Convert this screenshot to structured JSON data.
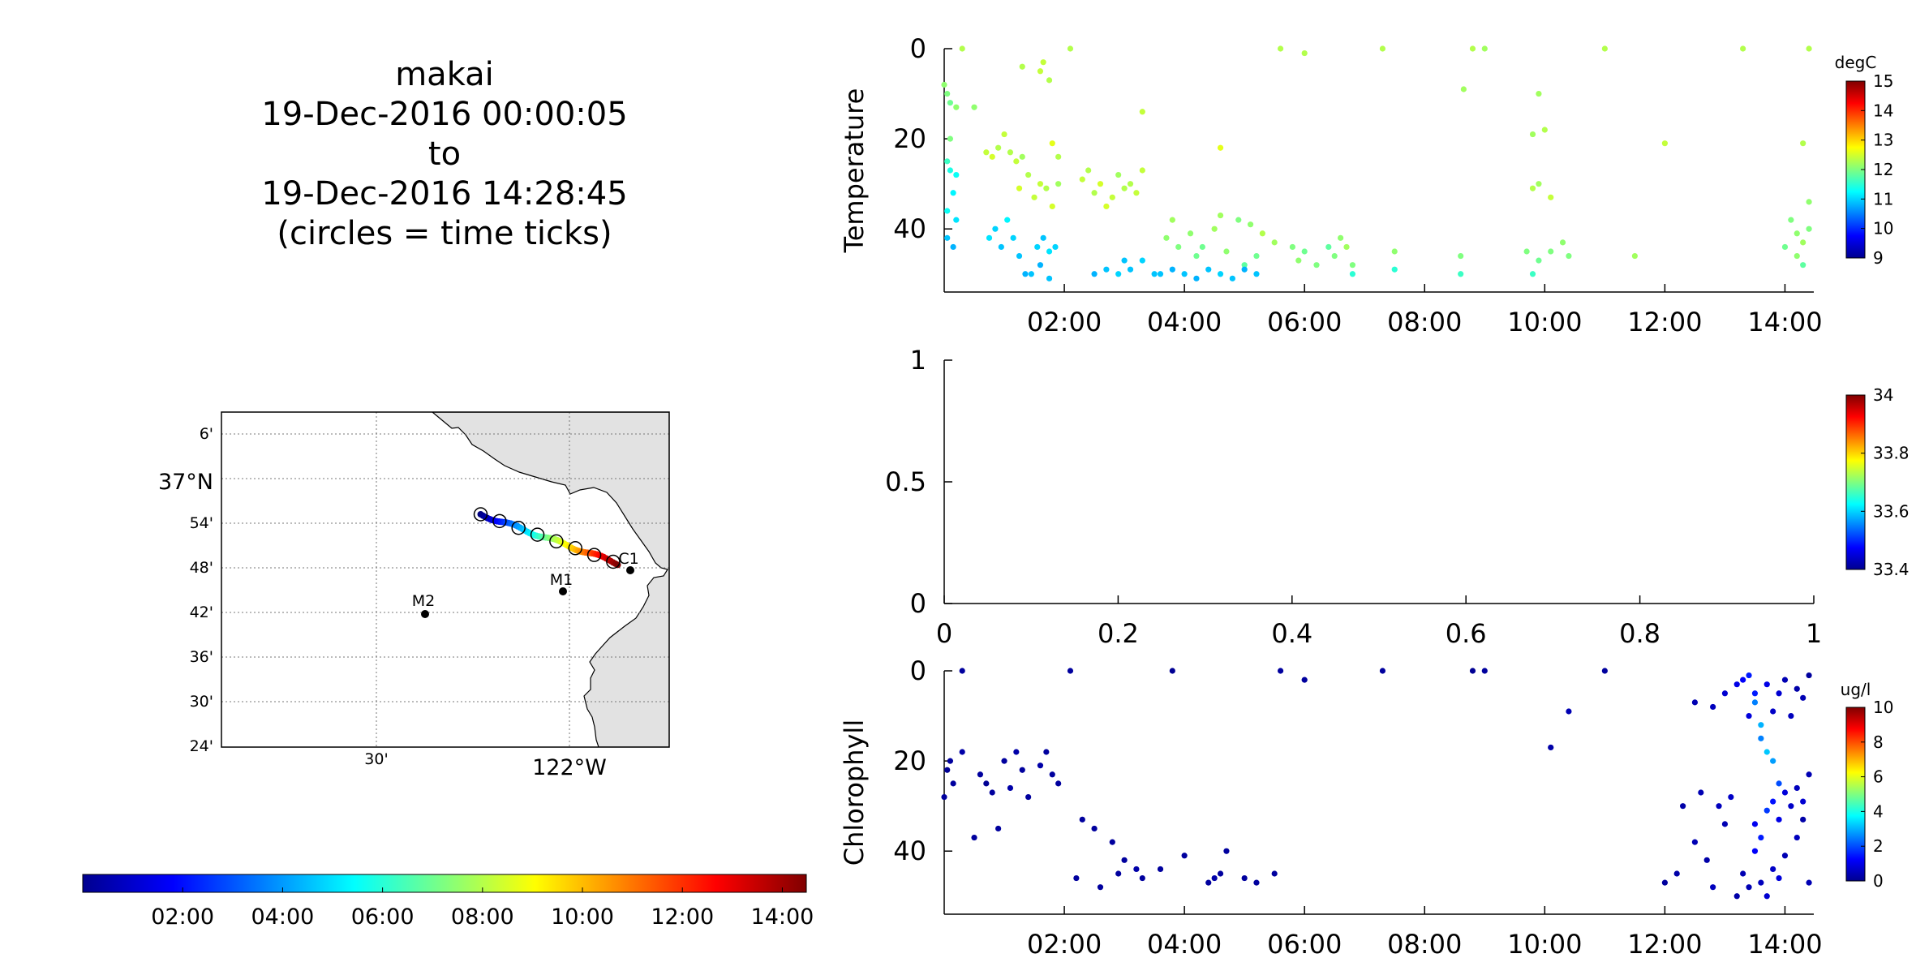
{
  "title": {
    "lines": [
      "makai",
      "19-Dec-2016 00:00:05",
      "to",
      "19-Dec-2016 14:28:45",
      "(circles = time ticks)"
    ]
  },
  "time_colorbar": {
    "ticks": [
      "02:00",
      "04:00",
      "06:00",
      "08:00",
      "10:00",
      "12:00",
      "14:00"
    ],
    "range_hours": [
      0,
      14.48
    ],
    "colormap": "jet"
  },
  "map": {
    "lat_labels": [
      "6'",
      "37°N",
      "54'",
      "48'",
      "42'",
      "36'",
      "30'",
      "24'"
    ],
    "lon_labels": [
      "30'",
      "122°W"
    ],
    "stations": [
      {
        "name": "M2",
        "lat": 36.695,
        "lon": -122.39
      },
      {
        "name": "M1",
        "lat": 36.747,
        "lon": -122.025
      },
      {
        "name": "C1",
        "lat": 36.797,
        "lon": -121.85
      }
    ],
    "land_color": "#e2e2e2",
    "track_start": {
      "lat": 36.92,
      "lon": -122.23
    },
    "track_end": {
      "lat": 36.81,
      "lon": -121.875
    }
  },
  "chart_data": [
    {
      "type": "scatter",
      "ylabel": "Temperature",
      "colorbar_label": "degC",
      "colorbar_ticks": [
        "15",
        "14",
        "13",
        "12",
        "11",
        "10",
        "9"
      ],
      "clim": [
        9,
        15
      ],
      "yticks": [
        "0",
        "20",
        "40"
      ],
      "xticks": [
        "02:00",
        "04:00",
        "06:00",
        "08:00",
        "10:00",
        "12:00",
        "14:00"
      ],
      "xlim_hours": [
        0,
        14.48
      ],
      "ylim": [
        54,
        0
      ],
      "points": [
        [
          0.0,
          8,
          12.1
        ],
        [
          0.05,
          10,
          12.0
        ],
        [
          0.1,
          12,
          11.9
        ],
        [
          0.2,
          13,
          12.1
        ],
        [
          0.1,
          20,
          12.0
        ],
        [
          0.05,
          25,
          11.6
        ],
        [
          0.1,
          27,
          11.4
        ],
        [
          0.2,
          28,
          11.3
        ],
        [
          0.15,
          32,
          11.2
        ],
        [
          0.05,
          36,
          11.3
        ],
        [
          0.2,
          38,
          11.1
        ],
        [
          0.05,
          42,
          10.9
        ],
        [
          0.15,
          44,
          10.8
        ],
        [
          0.5,
          13,
          12.1
        ],
        [
          0.3,
          0,
          12.3
        ],
        [
          1.3,
          4,
          12.3
        ],
        [
          1.6,
          5,
          12.4
        ],
        [
          1.75,
          7,
          12.3
        ],
        [
          1.65,
          3,
          12.4
        ],
        [
          2.1,
          0,
          12.3
        ],
        [
          3.3,
          14,
          12.4
        ],
        [
          0.7,
          23,
          12.4
        ],
        [
          0.8,
          24,
          12.5
        ],
        [
          0.9,
          22,
          12.3
        ],
        [
          1.0,
          19,
          12.4
        ],
        [
          1.1,
          23,
          12.3
        ],
        [
          1.3,
          24,
          12.2
        ],
        [
          1.2,
          25,
          12.4
        ],
        [
          1.4,
          28,
          12.3
        ],
        [
          1.25,
          31,
          12.5
        ],
        [
          1.8,
          21,
          12.6
        ],
        [
          1.9,
          24,
          12.3
        ],
        [
          1.6,
          30,
          12.4
        ],
        [
          1.7,
          31,
          12.3
        ],
        [
          1.9,
          30,
          12.2
        ],
        [
          1.5,
          33,
          12.4
        ],
        [
          1.8,
          35,
          12.5
        ],
        [
          0.75,
          42,
          11.1
        ],
        [
          0.85,
          40,
          11.0
        ],
        [
          0.95,
          44,
          10.9
        ],
        [
          1.05,
          38,
          11.2
        ],
        [
          1.15,
          42,
          11.0
        ],
        [
          1.25,
          46,
          10.9
        ],
        [
          1.35,
          50,
          10.8
        ],
        [
          1.45,
          50,
          10.9
        ],
        [
          1.55,
          44,
          11.0
        ],
        [
          1.65,
          42,
          10.9
        ],
        [
          1.75,
          45,
          11.1
        ],
        [
          1.85,
          44,
          11.0
        ],
        [
          1.6,
          48,
          10.8
        ],
        [
          1.75,
          51,
          10.9
        ],
        [
          2.3,
          29,
          12.4
        ],
        [
          2.5,
          32,
          12.3
        ],
        [
          2.6,
          30,
          12.5
        ],
        [
          2.8,
          33,
          12.4
        ],
        [
          3.0,
          31,
          12.3
        ],
        [
          3.2,
          32,
          12.4
        ],
        [
          2.4,
          27,
          12.3
        ],
        [
          2.7,
          35,
          12.5
        ],
        [
          2.9,
          28,
          12.2
        ],
        [
          3.1,
          30,
          12.3
        ],
        [
          3.3,
          27,
          12.4
        ],
        [
          2.5,
          50,
          10.8
        ],
        [
          2.7,
          49,
          10.9
        ],
        [
          2.9,
          50,
          11.0
        ],
        [
          3.1,
          49,
          10.9
        ],
        [
          3.3,
          47,
          11.0
        ],
        [
          3.5,
          50,
          10.9
        ],
        [
          3.0,
          47,
          10.9
        ],
        [
          3.7,
          42,
          12.1
        ],
        [
          3.9,
          44,
          12.0
        ],
        [
          4.1,
          41,
          12.1
        ],
        [
          4.3,
          44,
          11.9
        ],
        [
          4.5,
          40,
          12.2
        ],
        [
          4.7,
          45,
          12.1
        ],
        [
          4.9,
          38,
          12.0
        ],
        [
          5.1,
          39,
          12.1
        ],
        [
          5.3,
          41,
          12.3
        ],
        [
          5.5,
          43,
          12.2
        ],
        [
          3.8,
          38,
          12.2
        ],
        [
          4.2,
          46,
          11.9
        ],
        [
          4.6,
          37,
          12.2
        ],
        [
          5.0,
          48,
          11.8
        ],
        [
          4.6,
          22,
          12.6
        ],
        [
          5.2,
          46,
          11.9
        ],
        [
          3.6,
          50,
          10.9
        ],
        [
          3.8,
          49,
          10.8
        ],
        [
          4.0,
          50,
          10.9
        ],
        [
          4.2,
          51,
          10.8
        ],
        [
          4.4,
          49,
          10.9
        ],
        [
          4.6,
          50,
          11.0
        ],
        [
          4.8,
          51,
          10.9
        ],
        [
          5.0,
          49,
          10.8
        ],
        [
          5.2,
          50,
          10.9
        ],
        [
          5.6,
          0,
          12.3
        ],
        [
          6.0,
          1,
          12.3
        ],
        [
          5.8,
          44,
          12.0
        ],
        [
          5.9,
          47,
          12.1
        ],
        [
          6.0,
          45,
          11.9
        ],
        [
          6.2,
          48,
          12.0
        ],
        [
          6.4,
          44,
          11.8
        ],
        [
          6.5,
          46,
          12.0
        ],
        [
          6.6,
          42,
          12.1
        ],
        [
          6.7,
          44,
          12.2
        ],
        [
          6.8,
          48,
          12.0
        ],
        [
          6.8,
          50,
          11.5
        ],
        [
          7.3,
          0,
          12.3
        ],
        [
          7.5,
          45,
          12.1
        ],
        [
          7.5,
          49,
          11.5
        ],
        [
          8.65,
          9,
          12.2
        ],
        [
          8.8,
          0,
          12.3
        ],
        [
          9.0,
          0,
          12.2
        ],
        [
          8.6,
          46,
          12.0
        ],
        [
          8.6,
          50,
          11.6
        ],
        [
          9.8,
          19,
          12.2
        ],
        [
          9.9,
          10,
          12.2
        ],
        [
          10.0,
          18,
          12.3
        ],
        [
          9.8,
          31,
          12.3
        ],
        [
          9.9,
          30,
          12.2
        ],
        [
          10.1,
          33,
          12.4
        ],
        [
          9.7,
          45,
          12.0
        ],
        [
          9.9,
          47,
          11.9
        ],
        [
          10.1,
          45,
          12.0
        ],
        [
          10.3,
          43,
          12.1
        ],
        [
          10.4,
          46,
          12.0
        ],
        [
          9.8,
          50,
          11.6
        ],
        [
          11.0,
          0,
          12.3
        ],
        [
          11.5,
          46,
          12.2
        ],
        [
          12.0,
          21,
          12.4
        ],
        [
          13.3,
          0,
          12.3
        ],
        [
          14.3,
          21,
          12.3
        ],
        [
          14.4,
          0,
          12.3
        ],
        [
          14.1,
          38,
          12.0
        ],
        [
          14.2,
          41,
          12.1
        ],
        [
          14.3,
          43,
          12.2
        ],
        [
          14.4,
          40,
          12.0
        ],
        [
          14.0,
          44,
          11.9
        ],
        [
          14.2,
          46,
          12.1
        ],
        [
          14.4,
          34,
          12.1
        ],
        [
          14.3,
          48,
          11.8
        ]
      ]
    },
    {
      "type": "scatter",
      "colorbar_ticks": [
        "34",
        "33.8",
        "33.6",
        "33.4"
      ],
      "clim": [
        33.4,
        34
      ],
      "xticks": [
        "0",
        "0.2",
        "0.4",
        "0.6",
        "0.8",
        "1"
      ],
      "yticks": [
        "1",
        "0.5",
        "0"
      ],
      "xlim": [
        0,
        1
      ],
      "ylim": [
        0,
        1
      ],
      "points": []
    },
    {
      "type": "scatter",
      "ylabel": "Chlorophyll",
      "colorbar_label": "ug/l",
      "colorbar_ticks": [
        "10",
        "8",
        "6",
        "4",
        "2",
        "0"
      ],
      "clim": [
        0,
        10
      ],
      "yticks": [
        "0",
        "20",
        "40"
      ],
      "xticks": [
        "02:00",
        "04:00",
        "06:00",
        "08:00",
        "10:00",
        "12:00",
        "14:00"
      ],
      "xlim_hours": [
        0,
        14.48
      ],
      "ylim": [
        54,
        0
      ],
      "points": [
        [
          0.3,
          0,
          0.3
        ],
        [
          2.1,
          0,
          0.3
        ],
        [
          3.8,
          0,
          0.2
        ],
        [
          5.6,
          0,
          0.3
        ],
        [
          6.0,
          2,
          0.3
        ],
        [
          7.3,
          0,
          0.3
        ],
        [
          8.8,
          0,
          0.2
        ],
        [
          9.0,
          0,
          0.3
        ],
        [
          11.0,
          0,
          0.3
        ],
        [
          0.1,
          20,
          0.3
        ],
        [
          0.05,
          22,
          0.2
        ],
        [
          0.15,
          25,
          0.3
        ],
        [
          0.0,
          28,
          0.3
        ],
        [
          0.3,
          18,
          0.4
        ],
        [
          0.6,
          23,
          0.3
        ],
        [
          0.7,
          25,
          0.2
        ],
        [
          0.8,
          27,
          0.3
        ],
        [
          1.0,
          20,
          0.3
        ],
        [
          1.1,
          26,
          0.4
        ],
        [
          1.3,
          22,
          0.3
        ],
        [
          1.4,
          28,
          0.3
        ],
        [
          1.6,
          21,
          0.4
        ],
        [
          1.8,
          23,
          0.3
        ],
        [
          1.9,
          25,
          0.3
        ],
        [
          0.5,
          37,
          0.3
        ],
        [
          0.9,
          35,
          0.3
        ],
        [
          1.2,
          18,
          0.4
        ],
        [
          1.7,
          18,
          0.3
        ],
        [
          2.3,
          33,
          0.3
        ],
        [
          2.5,
          35,
          0.3
        ],
        [
          2.8,
          38,
          0.3
        ],
        [
          3.0,
          42,
          0.3
        ],
        [
          3.2,
          44,
          0.4
        ],
        [
          3.3,
          46,
          0.3
        ],
        [
          2.2,
          46,
          0.3
        ],
        [
          2.6,
          48,
          0.3
        ],
        [
          2.9,
          45,
          0.3
        ],
        [
          4.0,
          41,
          0.3
        ],
        [
          4.4,
          47,
          0.3
        ],
        [
          4.6,
          45,
          0.3
        ],
        [
          4.7,
          40,
          0.3
        ],
        [
          5.0,
          46,
          0.3
        ],
        [
          5.2,
          47,
          0.3
        ],
        [
          5.5,
          45,
          0.3
        ],
        [
          4.5,
          46,
          0.4
        ],
        [
          3.6,
          44,
          0.3
        ],
        [
          10.1,
          17,
          0.4
        ],
        [
          10.4,
          9,
          0.5
        ],
        [
          12.5,
          7,
          0.5
        ],
        [
          12.8,
          8,
          0.6
        ],
        [
          13.0,
          5,
          0.8
        ],
        [
          13.2,
          3,
          1.0
        ],
        [
          13.3,
          2,
          1.2
        ],
        [
          13.4,
          1,
          1.5
        ],
        [
          13.5,
          7,
          2.5
        ],
        [
          13.6,
          12,
          3.0
        ],
        [
          13.7,
          18,
          3.2
        ],
        [
          13.8,
          20,
          2.8
        ],
        [
          13.9,
          25,
          2.0
        ],
        [
          13.6,
          15,
          2.5
        ],
        [
          13.5,
          5,
          1.5
        ],
        [
          13.7,
          3,
          1.0
        ],
        [
          13.9,
          5,
          0.8
        ],
        [
          14.0,
          2,
          0.5
        ],
        [
          14.2,
          4,
          0.4
        ],
        [
          14.4,
          1,
          0.3
        ],
        [
          14.3,
          6,
          0.5
        ],
        [
          13.8,
          9,
          0.7
        ],
        [
          14.1,
          10,
          0.6
        ],
        [
          13.4,
          10,
          0.9
        ],
        [
          12.0,
          47,
          0.3
        ],
        [
          12.2,
          45,
          0.4
        ],
        [
          12.5,
          38,
          0.5
        ],
        [
          12.7,
          42,
          0.4
        ],
        [
          12.9,
          30,
          0.6
        ],
        [
          13.0,
          34,
          0.5
        ],
        [
          13.1,
          28,
          0.7
        ],
        [
          13.3,
          45,
          0.5
        ],
        [
          13.5,
          40,
          1.2
        ],
        [
          13.6,
          37,
          1.5
        ],
        [
          13.7,
          31,
          1.8
        ],
        [
          13.8,
          29,
          1.4
        ],
        [
          13.9,
          33,
          1.0
        ],
        [
          14.0,
          27,
          0.9
        ],
        [
          14.1,
          30,
          0.7
        ],
        [
          14.2,
          26,
          0.6
        ],
        [
          14.3,
          29,
          0.8
        ],
        [
          14.4,
          23,
          0.5
        ],
        [
          14.3,
          33,
          0.4
        ],
        [
          14.2,
          37,
          0.6
        ],
        [
          14.0,
          41,
          0.5
        ],
        [
          13.8,
          44,
          0.7
        ],
        [
          13.6,
          47,
          0.6
        ],
        [
          13.7,
          50,
          0.8
        ],
        [
          13.4,
          48,
          0.5
        ],
        [
          13.2,
          50,
          0.4
        ],
        [
          12.8,
          48,
          0.6
        ],
        [
          12.6,
          27,
          0.5
        ],
        [
          12.3,
          30,
          0.4
        ],
        [
          14.4,
          47,
          0.5
        ],
        [
          13.9,
          46,
          0.9
        ],
        [
          13.5,
          34,
          1.1
        ]
      ]
    }
  ]
}
